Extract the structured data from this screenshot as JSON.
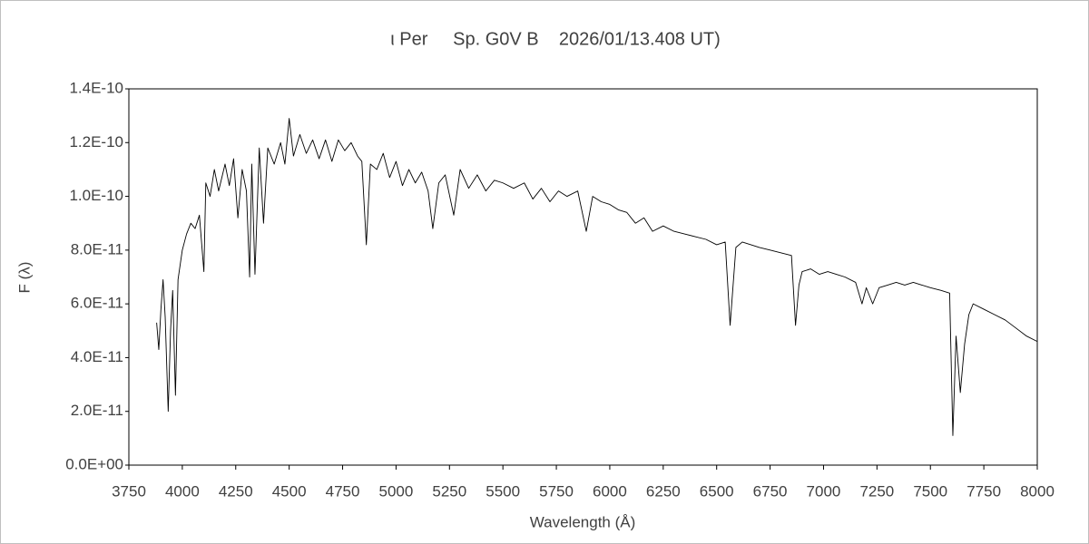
{
  "chart_data": {
    "type": "line",
    "title": "ι Per     Sp. G0V B    2026/01/13.408 UT)",
    "x_label": "Wavelength (Å)",
    "y_label": "F (λ)",
    "xlim": [
      3750,
      8000
    ],
    "xticks": [
      3750,
      4000,
      4250,
      4500,
      4750,
      5000,
      5250,
      5500,
      5750,
      6000,
      6250,
      6500,
      6750,
      7000,
      7250,
      7500,
      7750,
      8000
    ],
    "ylim": [
      0,
      1.4e-10
    ],
    "yticks": [
      {
        "value": 0,
        "label": "0.0E+00"
      },
      {
        "value": 2e-11,
        "label": "2.0E-11"
      },
      {
        "value": 4e-11,
        "label": "4.0E-11"
      },
      {
        "value": 6e-11,
        "label": "6.0E-11"
      },
      {
        "value": 8e-11,
        "label": "8.0E-11"
      },
      {
        "value": 1e-10,
        "label": "1.0E-10"
      },
      {
        "value": 1.2e-10,
        "label": "1.2E-10"
      },
      {
        "value": 1.4e-10,
        "label": "1.4E-10"
      }
    ],
    "grid": false,
    "x": [
      3880,
      3890,
      3900,
      3910,
      3920,
      3934,
      3945,
      3955,
      3968,
      3980,
      4000,
      4020,
      4040,
      4060,
      4080,
      4101,
      4110,
      4130,
      4150,
      4170,
      4200,
      4220,
      4240,
      4260,
      4280,
      4300,
      4315,
      4325,
      4340,
      4360,
      4380,
      4400,
      4430,
      4460,
      4480,
      4500,
      4520,
      4550,
      4580,
      4610,
      4640,
      4670,
      4700,
      4730,
      4760,
      4790,
      4820,
      4840,
      4861,
      4880,
      4910,
      4940,
      4970,
      5000,
      5030,
      5060,
      5090,
      5120,
      5150,
      5172,
      5200,
      5230,
      5270,
      5300,
      5340,
      5380,
      5420,
      5460,
      5500,
      5550,
      5600,
      5640,
      5680,
      5720,
      5760,
      5800,
      5850,
      5890,
      5920,
      5960,
      6000,
      6040,
      6080,
      6120,
      6160,
      6200,
      6250,
      6300,
      6350,
      6400,
      6450,
      6500,
      6540,
      6563,
      6590,
      6620,
      6660,
      6700,
      6750,
      6800,
      6850,
      6869,
      6885,
      6900,
      6940,
      6980,
      7020,
      7060,
      7100,
      7150,
      7180,
      7200,
      7230,
      7260,
      7300,
      7340,
      7380,
      7420,
      7460,
      7500,
      7550,
      7590,
      7605,
      7620,
      7640,
      7660,
      7680,
      7700,
      7750,
      7800,
      7850,
      7900,
      7950,
      8000
    ],
    "series": [
      {
        "color": "#000000",
        "values": [
          5.3e-11,
          4.3e-11,
          5.8e-11,
          6.9e-11,
          5.5e-11,
          2e-11,
          5e-11,
          6.5e-11,
          2.6e-11,
          6.9e-11,
          8e-11,
          8.6e-11,
          9e-11,
          8.8e-11,
          9.3e-11,
          7.2e-11,
          1.05e-10,
          1e-10,
          1.1e-10,
          1.02e-10,
          1.12e-10,
          1.04e-10,
          1.14e-10,
          9.2e-11,
          1.1e-10,
          1.02e-10,
          7e-11,
          1.12e-10,
          7.1e-11,
          1.18e-10,
          9e-11,
          1.18e-10,
          1.12e-10,
          1.2e-10,
          1.12e-10,
          1.29e-10,
          1.15e-10,
          1.23e-10,
          1.16e-10,
          1.21e-10,
          1.14e-10,
          1.21e-10,
          1.13e-10,
          1.21e-10,
          1.17e-10,
          1.2e-10,
          1.15e-10,
          1.13e-10,
          8.2e-11,
          1.12e-10,
          1.1e-10,
          1.16e-10,
          1.07e-10,
          1.13e-10,
          1.04e-10,
          1.1e-10,
          1.05e-10,
          1.09e-10,
          1.02e-10,
          8.8e-11,
          1.05e-10,
          1.08e-10,
          9.3e-11,
          1.1e-10,
          1.03e-10,
          1.08e-10,
          1.02e-10,
          1.06e-10,
          1.05e-10,
          1.03e-10,
          1.05e-10,
          9.9e-11,
          1.03e-10,
          9.8e-11,
          1.02e-10,
          1e-10,
          1.02e-10,
          8.7e-11,
          1e-10,
          9.8e-11,
          9.7e-11,
          9.5e-11,
          9.4e-11,
          9e-11,
          9.2e-11,
          8.7e-11,
          8.9e-11,
          8.7e-11,
          8.6e-11,
          8.5e-11,
          8.4e-11,
          8.2e-11,
          8.3e-11,
          5.2e-11,
          8.1e-11,
          8.3e-11,
          8.2e-11,
          8.1e-11,
          8e-11,
          7.9e-11,
          7.8e-11,
          5.2e-11,
          6.7e-11,
          7.2e-11,
          7.3e-11,
          7.1e-11,
          7.2e-11,
          7.1e-11,
          7e-11,
          6.8e-11,
          6e-11,
          6.6e-11,
          6e-11,
          6.6e-11,
          6.7e-11,
          6.8e-11,
          6.7e-11,
          6.8e-11,
          6.7e-11,
          6.6e-11,
          6.5e-11,
          6.4e-11,
          1.1e-11,
          4.8e-11,
          2.7e-11,
          4.5e-11,
          5.6e-11,
          6e-11,
          5.8e-11,
          5.6e-11,
          5.4e-11,
          5.1e-11,
          4.8e-11,
          4.6e-11
        ]
      }
    ]
  }
}
